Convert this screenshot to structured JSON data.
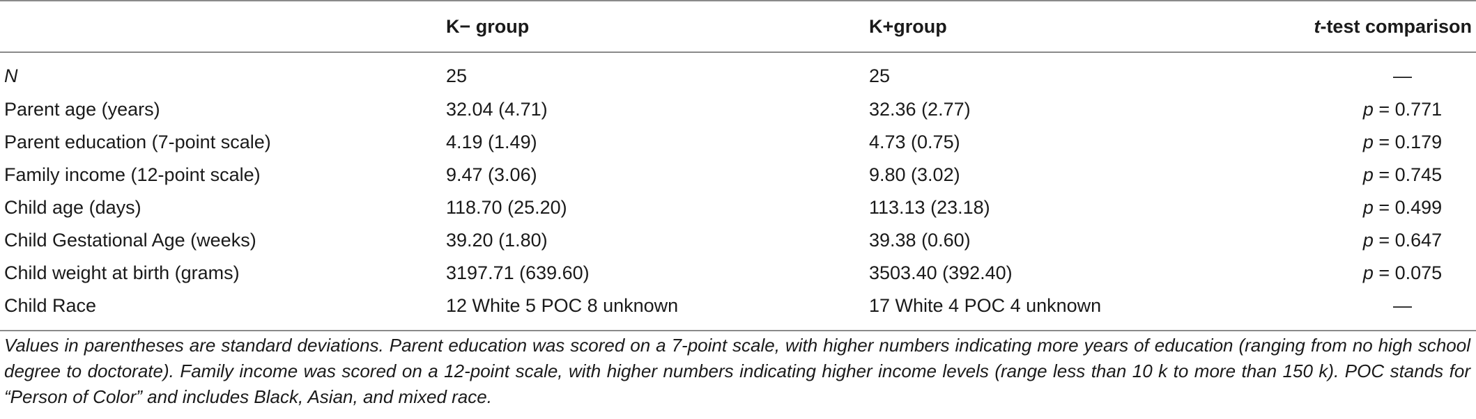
{
  "table": {
    "columns": [
      "",
      "K− group",
      "K+group",
      "comparison"
    ],
    "header_t": "t",
    "header_t_suffix": "-test comparison",
    "rows": [
      {
        "label_italic": "N",
        "k_minus": "25",
        "k_plus": "25",
        "test": "—",
        "test_italic_p": false
      },
      {
        "label": "Parent age (years)",
        "k_minus": "32.04 (4.71)",
        "k_plus": "32.36 (2.77)",
        "p": "p",
        "test": " = 0.771"
      },
      {
        "label": "Parent education (7-point scale)",
        "k_minus": "4.19 (1.49)",
        "k_plus": "4.73 (0.75)",
        "p": "p",
        "test": " = 0.179"
      },
      {
        "label": "Family income (12-point scale)",
        "k_minus": "9.47 (3.06)",
        "k_plus": "9.80 (3.02)",
        "p": "p",
        "test": " = 0.745"
      },
      {
        "label": "Child age (days)",
        "k_minus": "118.70 (25.20)",
        "k_plus": "113.13 (23.18)",
        "p": "p",
        "test": " = 0.499"
      },
      {
        "label": "Child Gestational Age (weeks)",
        "k_minus": "39.20 (1.80)",
        "k_plus": "39.38 (0.60)",
        "p": "p",
        "test": " = 0.647"
      },
      {
        "label": "Child weight at birth (grams)",
        "k_minus": "3197.71 (639.60)",
        "k_plus": "3503.40 (392.40)",
        "p": "p",
        "test": " = 0.075"
      },
      {
        "label": "Child Race",
        "k_minus": "12 White 5 POC 8 unknown",
        "k_plus": "17 White 4 POC 4 unknown",
        "test": "—"
      }
    ]
  },
  "footnote": "Values in parentheses are standard deviations. Parent education was scored on a 7-point scale, with higher numbers indicating more years of education (ranging from no high school degree to doctorate). Family income was scored on a 12-point scale, with higher numbers indicating higher income levels (range less than 10 k to more than 150 k). POC stands for “Person of Color” and includes Black, Asian, and mixed race."
}
